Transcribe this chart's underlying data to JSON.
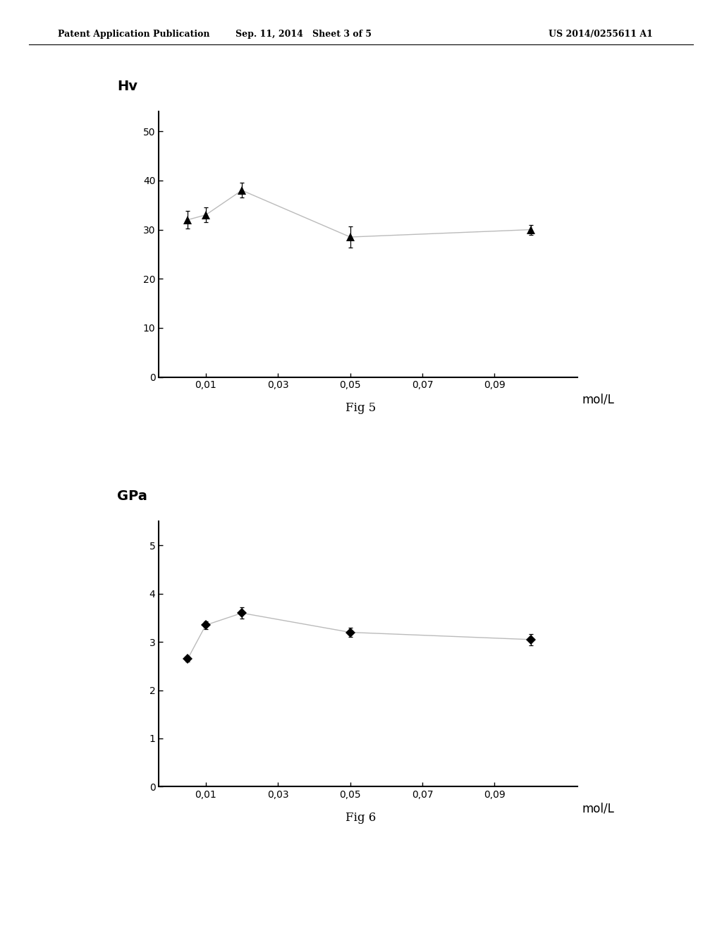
{
  "fig5": {
    "ylabel": "Hv",
    "xlabel": "mol/L",
    "caption": "Fig 5",
    "x": [
      0.005,
      0.01,
      0.02,
      0.05,
      0.1
    ],
    "y": [
      32.0,
      33.0,
      38.0,
      28.5,
      30.0
    ],
    "yerr": [
      1.8,
      1.5,
      1.5,
      2.2,
      1.0
    ],
    "xticks": [
      0.01,
      0.03,
      0.05,
      0.07,
      0.09
    ],
    "xticklabels": [
      "0,01",
      "0,03",
      "0,05",
      "0,07",
      "0,09"
    ],
    "yticks": [
      0,
      10,
      20,
      30,
      40,
      50
    ],
    "xlim": [
      -0.003,
      0.113
    ],
    "ylim": [
      0,
      54
    ]
  },
  "fig6": {
    "ylabel": "GPa",
    "xlabel": "mol/L",
    "caption": "Fig 6",
    "x": [
      0.005,
      0.01,
      0.02,
      0.05,
      0.1
    ],
    "y": [
      2.65,
      3.35,
      3.6,
      3.2,
      3.05
    ],
    "yerr": [
      0.05,
      0.08,
      0.12,
      0.1,
      0.12
    ],
    "xticks": [
      0.01,
      0.03,
      0.05,
      0.07,
      0.09
    ],
    "xticklabels": [
      "0,01",
      "0,03",
      "0,05",
      "0,07",
      "0,09"
    ],
    "yticks": [
      0,
      1,
      2,
      3,
      4,
      5
    ],
    "xlim": [
      -0.003,
      0.113
    ],
    "ylim": [
      0,
      5.5
    ]
  },
  "header_left": "Patent Application Publication",
  "header_mid": "Sep. 11, 2014   Sheet 3 of 5",
  "header_right": "US 2014/0255611 A1",
  "line_color": "#bbbbbb",
  "marker_color": "#000000",
  "font_size_axis_label": 12,
  "font_size_tick": 10,
  "font_size_caption": 12,
  "font_size_header": 9
}
